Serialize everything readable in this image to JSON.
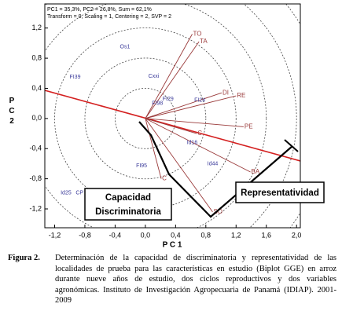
{
  "chart_data": {
    "type": "biplot",
    "header_lines": [
      "PC1 = 35,3%, PC2 = 26,8%, Sum = 62,1%",
      "Transform = 0, Scaling = 1, Centering = 2, SVP = 2"
    ],
    "xlabel": "P C 1",
    "ylabel": "P C 2",
    "xlim": [
      -1.33,
      2.05
    ],
    "ylim": [
      -1.45,
      1.52
    ],
    "xticks": [
      {
        "value": -1.2,
        "label": "-1,2"
      },
      {
        "value": -0.8,
        "label": "-0,8"
      },
      {
        "value": -0.4,
        "label": "-0,4"
      },
      {
        "value": 0,
        "label": "0,0"
      },
      {
        "value": 0.4,
        "label": "0,4"
      },
      {
        "value": 0.8,
        "label": "0,8"
      },
      {
        "value": 1.2,
        "label": "1,2"
      },
      {
        "value": 1.6,
        "label": "1,6"
      },
      {
        "value": 2,
        "label": "2,0"
      }
    ],
    "yticks": [
      {
        "value": 1.2,
        "label": "1,2"
      },
      {
        "value": 0.8,
        "label": "0,8"
      },
      {
        "value": 0.4,
        "label": "0,4"
      },
      {
        "value": 0,
        "label": "0,0"
      },
      {
        "value": -0.4,
        "label": "-0,4"
      },
      {
        "value": -0.8,
        "label": "-0,8"
      },
      {
        "value": -1.2,
        "label": "-1,2"
      }
    ],
    "genotypes": {
      "color": "#3a3a9a",
      "labels": [
        "Os1",
        "FI39",
        "Cxxi",
        "FI29",
        "FI98",
        "FI24",
        "Id16",
        "FI95",
        "Id44",
        "Id25",
        "CP"
      ],
      "x": [
        -0.27,
        -0.93,
        0.11,
        0.3,
        0.16,
        0.72,
        0.62,
        -0.05,
        0.89,
        -1.05,
        -0.87
      ],
      "y": [
        0.95,
        0.55,
        0.56,
        0.26,
        0.2,
        0.24,
        -0.32,
        -0.63,
        -0.6,
        -0.99,
        -0.99
      ]
    },
    "environments": {
      "color": "#9a3a3a",
      "labels": [
        "TO",
        "TA",
        "DI",
        "RE",
        "PE",
        "C",
        "BA",
        "SO",
        "C"
      ],
      "x": [
        0.62,
        0.71,
        1.01,
        1.2,
        1.3,
        0.68,
        1.39,
        0.89,
        0.21
      ],
      "y": [
        1.12,
        1.02,
        0.34,
        0.3,
        -0.11,
        -0.2,
        -0.71,
        -1.24,
        -0.8
      ]
    },
    "annotations": {
      "discrimination": [
        "Capacidad",
        "Discriminatoria"
      ],
      "representativeness": "Representatividad"
    }
  },
  "caption": {
    "label": "Figura 2.",
    "text": "Determinación de la capacidad de discriminatoria y representatividad de las localidades de prueba para las características en estudio (Biplot GGE) en arroz durante nueve años de estudio, dos ciclos reproductivos y dos variables agronómicas. Instituto de Investigación Agropecuaria de Panamá (IDIAP). 2001-2009"
  }
}
